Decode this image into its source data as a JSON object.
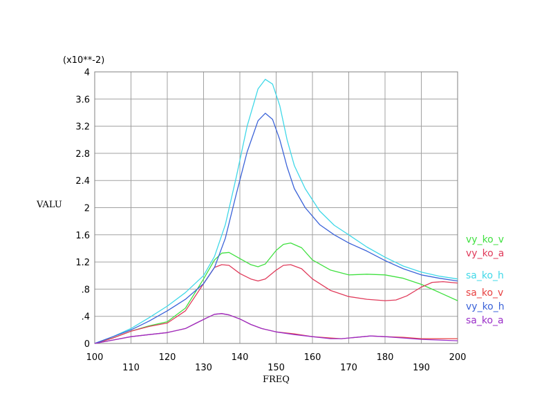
{
  "chart_data": {
    "type": "line",
    "xlabel": "FREQ",
    "ylabel": "VALU",
    "multiplier_label": "(x10**-2)",
    "xlim": [
      100,
      200
    ],
    "ylim": [
      0,
      4
    ],
    "grid": true,
    "legend_position": "right",
    "x_ticks": [
      "100",
      "110",
      "120",
      "130",
      "140",
      "150",
      "160",
      "170",
      "180",
      "190",
      "200"
    ],
    "y_ticks": [
      "0",
      ".4",
      ".8",
      "1.2",
      "1.6",
      "2",
      "2.4",
      "2.8",
      "3.2",
      "3.6",
      "4"
    ],
    "x_tick_values": [
      100,
      110,
      120,
      130,
      140,
      150,
      160,
      170,
      180,
      190,
      200
    ],
    "y_tick_values": [
      0,
      0.4,
      0.8,
      1.2,
      1.6,
      2.0,
      2.4,
      2.8,
      3.2,
      3.6,
      4.0
    ],
    "series": [
      {
        "name": "vy_ko_v",
        "color": "#3fe03f",
        "points": [
          [
            100,
            0.0
          ],
          [
            105,
            0.08
          ],
          [
            110,
            0.18
          ],
          [
            115,
            0.26
          ],
          [
            120,
            0.32
          ],
          [
            125,
            0.52
          ],
          [
            130,
            0.95
          ],
          [
            133,
            1.23
          ],
          [
            135,
            1.33
          ],
          [
            137,
            1.34
          ],
          [
            140,
            1.25
          ],
          [
            143,
            1.16
          ],
          [
            145,
            1.13
          ],
          [
            147,
            1.17
          ],
          [
            150,
            1.37
          ],
          [
            152,
            1.46
          ],
          [
            154,
            1.48
          ],
          [
            157,
            1.41
          ],
          [
            160,
            1.23
          ],
          [
            165,
            1.08
          ],
          [
            170,
            1.01
          ],
          [
            175,
            1.02
          ],
          [
            180,
            1.01
          ],
          [
            185,
            0.96
          ],
          [
            190,
            0.87
          ],
          [
            195,
            0.75
          ],
          [
            200,
            0.63
          ]
        ]
      },
      {
        "name": "vy_ko_a",
        "color": "#e03a5a",
        "points": [
          [
            100,
            0.0
          ],
          [
            105,
            0.08
          ],
          [
            110,
            0.18
          ],
          [
            115,
            0.25
          ],
          [
            120,
            0.3
          ],
          [
            125,
            0.48
          ],
          [
            130,
            0.88
          ],
          [
            133,
            1.12
          ],
          [
            135,
            1.16
          ],
          [
            137,
            1.15
          ],
          [
            140,
            1.03
          ],
          [
            143,
            0.95
          ],
          [
            145,
            0.92
          ],
          [
            147,
            0.95
          ],
          [
            150,
            1.08
          ],
          [
            152,
            1.15
          ],
          [
            154,
            1.16
          ],
          [
            157,
            1.1
          ],
          [
            160,
            0.95
          ],
          [
            165,
            0.78
          ],
          [
            170,
            0.69
          ],
          [
            175,
            0.65
          ],
          [
            180,
            0.63
          ],
          [
            183,
            0.64
          ],
          [
            186,
            0.7
          ],
          [
            190,
            0.83
          ],
          [
            193,
            0.9
          ],
          [
            196,
            0.91
          ],
          [
            200,
            0.89
          ]
        ]
      },
      {
        "name": "sa_ko_h",
        "color": "#3fd8e8",
        "points": [
          [
            100,
            0.0
          ],
          [
            105,
            0.1
          ],
          [
            110,
            0.22
          ],
          [
            115,
            0.38
          ],
          [
            120,
            0.55
          ],
          [
            125,
            0.75
          ],
          [
            130,
            1.0
          ],
          [
            133,
            1.28
          ],
          [
            136,
            1.75
          ],
          [
            139,
            2.45
          ],
          [
            142,
            3.2
          ],
          [
            145,
            3.75
          ],
          [
            147,
            3.89
          ],
          [
            149,
            3.82
          ],
          [
            151,
            3.5
          ],
          [
            153,
            3.0
          ],
          [
            155,
            2.62
          ],
          [
            158,
            2.28
          ],
          [
            162,
            1.95
          ],
          [
            166,
            1.74
          ],
          [
            170,
            1.6
          ],
          [
            175,
            1.42
          ],
          [
            180,
            1.27
          ],
          [
            185,
            1.14
          ],
          [
            190,
            1.05
          ],
          [
            195,
            0.99
          ],
          [
            200,
            0.95
          ]
        ]
      },
      {
        "name": "sa_ko_v",
        "color": "#e84040",
        "points": [
          [
            100,
            0.0
          ],
          [
            105,
            0.05
          ],
          [
            110,
            0.1
          ],
          [
            115,
            0.13
          ],
          [
            120,
            0.16
          ],
          [
            125,
            0.22
          ],
          [
            128,
            0.3
          ],
          [
            131,
            0.38
          ],
          [
            133,
            0.43
          ],
          [
            135,
            0.44
          ],
          [
            137,
            0.42
          ],
          [
            140,
            0.36
          ],
          [
            143,
            0.28
          ],
          [
            146,
            0.22
          ],
          [
            150,
            0.17
          ],
          [
            155,
            0.14
          ],
          [
            160,
            0.1
          ],
          [
            165,
            0.08
          ],
          [
            168,
            0.07
          ],
          [
            172,
            0.09
          ],
          [
            176,
            0.11
          ],
          [
            180,
            0.1
          ],
          [
            185,
            0.09
          ],
          [
            190,
            0.07
          ],
          [
            195,
            0.07
          ],
          [
            200,
            0.07
          ]
        ]
      },
      {
        "name": "vy_ko_h",
        "color": "#3a62d8",
        "points": [
          [
            100,
            0.0
          ],
          [
            105,
            0.1
          ],
          [
            110,
            0.2
          ],
          [
            115,
            0.33
          ],
          [
            120,
            0.48
          ],
          [
            125,
            0.65
          ],
          [
            130,
            0.88
          ],
          [
            133,
            1.12
          ],
          [
            136,
            1.55
          ],
          [
            139,
            2.2
          ],
          [
            142,
            2.82
          ],
          [
            145,
            3.28
          ],
          [
            147,
            3.39
          ],
          [
            149,
            3.3
          ],
          [
            151,
            3.0
          ],
          [
            153,
            2.6
          ],
          [
            155,
            2.28
          ],
          [
            158,
            2.0
          ],
          [
            162,
            1.75
          ],
          [
            166,
            1.6
          ],
          [
            170,
            1.48
          ],
          [
            175,
            1.36
          ],
          [
            180,
            1.22
          ],
          [
            185,
            1.1
          ],
          [
            190,
            1.01
          ],
          [
            195,
            0.96
          ],
          [
            200,
            0.92
          ]
        ]
      },
      {
        "name": "sa_ko_a",
        "color": "#9a2ec8",
        "points": [
          [
            100,
            0.0
          ],
          [
            105,
            0.05
          ],
          [
            110,
            0.1
          ],
          [
            115,
            0.13
          ],
          [
            120,
            0.16
          ],
          [
            125,
            0.22
          ],
          [
            128,
            0.3
          ],
          [
            131,
            0.38
          ],
          [
            133,
            0.43
          ],
          [
            135,
            0.44
          ],
          [
            137,
            0.42
          ],
          [
            140,
            0.36
          ],
          [
            143,
            0.28
          ],
          [
            146,
            0.22
          ],
          [
            150,
            0.17
          ],
          [
            155,
            0.13
          ],
          [
            160,
            0.1
          ],
          [
            165,
            0.07
          ],
          [
            168,
            0.07
          ],
          [
            172,
            0.09
          ],
          [
            176,
            0.11
          ],
          [
            180,
            0.1
          ],
          [
            185,
            0.08
          ],
          [
            190,
            0.06
          ],
          [
            195,
            0.05
          ],
          [
            200,
            0.04
          ]
        ]
      }
    ]
  }
}
